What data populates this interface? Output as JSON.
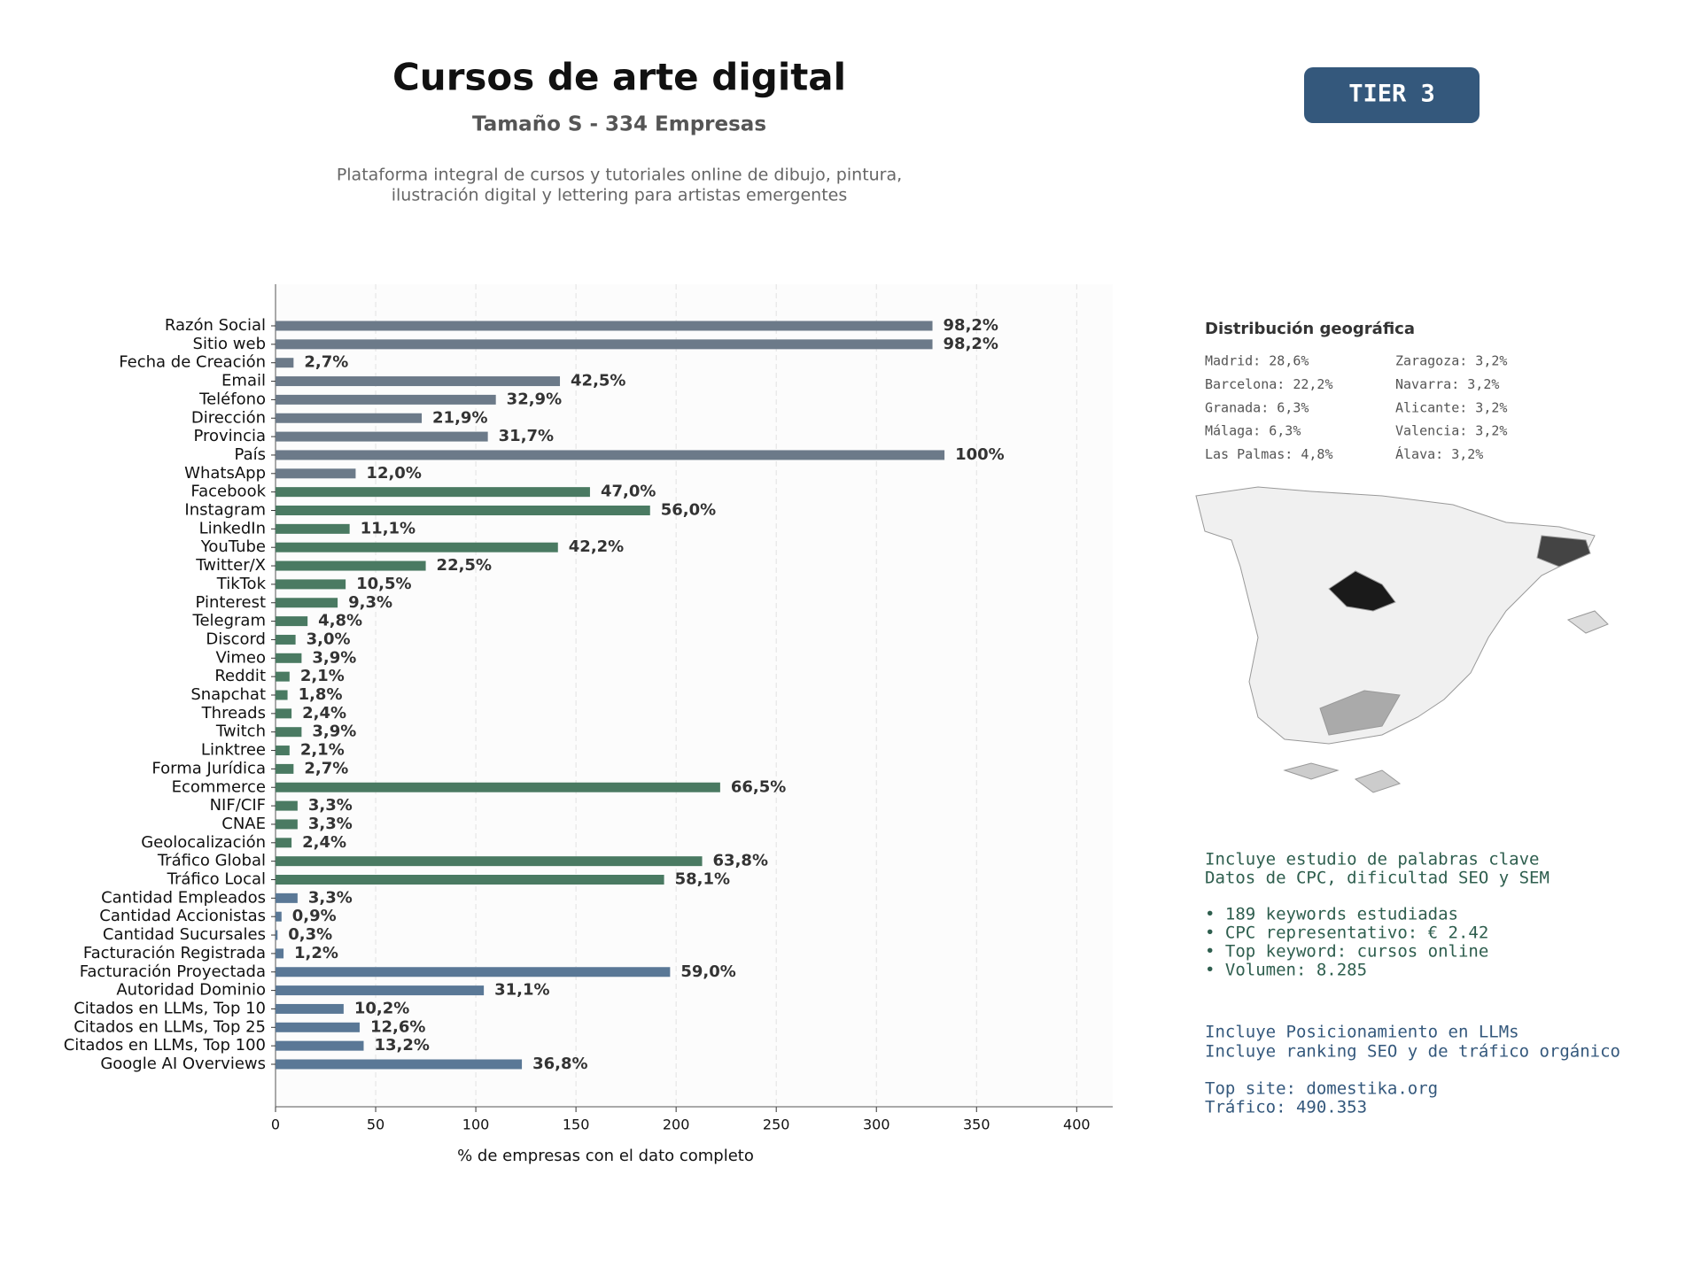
{
  "chart_data": {
    "type": "barh",
    "title": "Cursos de arte digital",
    "subtitle": "Tamaño S - 334 Empresas",
    "description": [
      "Plataforma integral de cursos y tutoriales online de dibujo, pintura,",
      "ilustración digital y lettering para artistas emergentes"
    ],
    "xlabel": "% de empresas con el dato completo",
    "categories": [
      "Razón Social",
      "Sitio web",
      "Fecha de Creación",
      "Email",
      "Teléfono",
      "Dirección",
      "Provincia",
      "País",
      "WhatsApp",
      "Facebook",
      "Instagram",
      "LinkedIn",
      "YouTube",
      "Twitter/X",
      "TikTok",
      "Pinterest",
      "Telegram",
      "Discord",
      "Vimeo",
      "Reddit",
      "Snapchat",
      "Threads",
      "Twitch",
      "Linktree",
      "Forma Jurídica",
      "Ecommerce",
      "NIF/CIF",
      "CNAE",
      "Geolocalización",
      "Tráfico Global",
      "Tráfico Local",
      "Cantidad Empleados",
      "Cantidad Accionistas",
      "Cantidad Sucursales",
      "Facturación Registrada",
      "Facturación Proyectada",
      "Autoridad Dominio",
      "Citados en LLMs, Top 10",
      "Citados en LLMs, Top 25",
      "Citados en LLMs, Top 100",
      "Google AI Overviews"
    ],
    "values": [
      328,
      328,
      9,
      142,
      110,
      73,
      106,
      334,
      40,
      157,
      187,
      37,
      141,
      75,
      35,
      31,
      16,
      10,
      13,
      7,
      6,
      8,
      13,
      7,
      9,
      222,
      11,
      11,
      8,
      213,
      194,
      11,
      3,
      1,
      4,
      197,
      104,
      34,
      42,
      44,
      123
    ],
    "value_labels": [
      "98,2%",
      "98,2%",
      "2,7%",
      "42,5%",
      "32,9%",
      "21,9%",
      "31,7%",
      "100%",
      "12,0%",
      "47,0%",
      "56,0%",
      "11,1%",
      "42,2%",
      "22,5%",
      "10,5%",
      "9,3%",
      "4,8%",
      "3,0%",
      "3,9%",
      "2,1%",
      "1,8%",
      "2,4%",
      "3,9%",
      "2,1%",
      "2,7%",
      "66,5%",
      "3,3%",
      "3,3%",
      "2,4%",
      "63,8%",
      "58,1%",
      "3,3%",
      "0,9%",
      "0,3%",
      "1,2%",
      "59,0%",
      "31,1%",
      "10,2%",
      "12,6%",
      "13,2%",
      "36,8%"
    ],
    "colors": [
      "#6c7a89",
      "#6c7a89",
      "#6c7a89",
      "#6c7a89",
      "#6c7a89",
      "#6c7a89",
      "#6c7a89",
      "#6c7a89",
      "#6c7a89",
      "#4a7a62",
      "#4a7a62",
      "#4a7a62",
      "#4a7a62",
      "#4a7a62",
      "#4a7a62",
      "#4a7a62",
      "#4a7a62",
      "#4a7a62",
      "#4a7a62",
      "#4a7a62",
      "#4a7a62",
      "#4a7a62",
      "#4a7a62",
      "#4a7a62",
      "#4a7a62",
      "#4a7a62",
      "#4a7a62",
      "#4a7a62",
      "#4a7a62",
      "#4a7a62",
      "#4a7a62",
      "#5a7896",
      "#5a7896",
      "#5a7896",
      "#5a7896",
      "#5a7896",
      "#5a7896",
      "#5a7896",
      "#5a7896",
      "#5a7896",
      "#5a7896"
    ],
    "xlim": [
      0,
      418
    ],
    "xticks": [
      0,
      50,
      100,
      150,
      200,
      250,
      300,
      350,
      400
    ],
    "grid": true
  },
  "badge": "TIER 3",
  "geo": {
    "title": "Distribución geográfica",
    "items": [
      "Madrid: 28,6%",
      "Barcelona: 22,2%",
      "Granada: 6,3%",
      "Málaga: 6,3%",
      "Las Palmas: 4,8%",
      "Zaragoza: 3,2%",
      "Navarra: 3,2%",
      "Alicante: 3,2%",
      "Valencia: 3,2%",
      "Álava: 3,2%"
    ]
  },
  "notes_seo": [
    "Incluye estudio de palabras clave",
    "Datos de CPC, dificultad SEO y SEM",
    "• 189 keywords estudiadas",
    "• CPC representativo: € 2.42",
    "• Top keyword: cursos online",
    "• Volumen: 8.285"
  ],
  "notes_llm": [
    "Incluye Posicionamiento en LLMs",
    "Incluye ranking SEO y de tráfico orgánico",
    "Top site: domestika.org",
    "Tráfico: 490.353"
  ]
}
